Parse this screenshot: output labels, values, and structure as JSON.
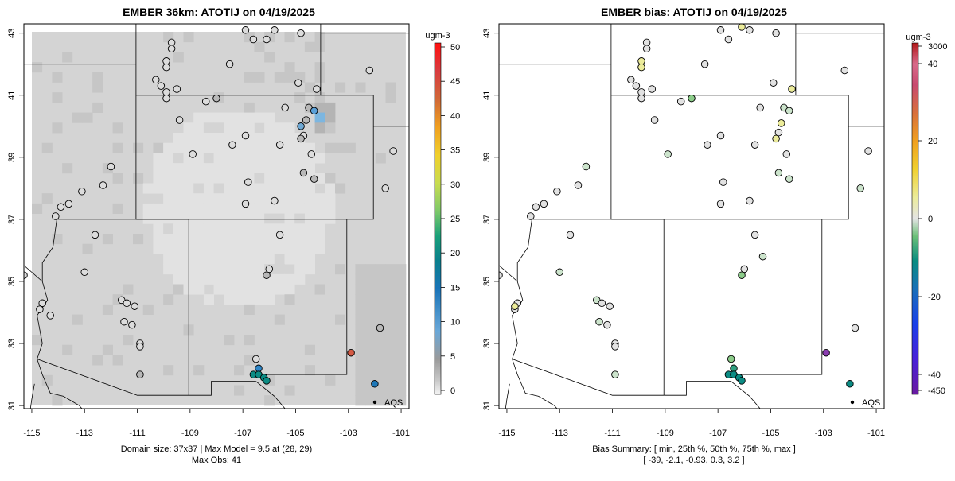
{
  "panels": [
    {
      "title": "EMBER 36km: ATOTIJ on 04/19/2025",
      "footer_lines": [
        "Domain size: 37x37 | Max Model = 9.5 at (28, 29)",
        "Max Obs: 41"
      ],
      "legend_label": "AQS"
    },
    {
      "title": "EMBER bias: ATOTIJ on 04/19/2025",
      "footer_lines": [
        "Bias Summary: [ min, 25th %, 50th %, 75th %, max ]",
        "[ -39,   -2.1,   -0.93,   0.3,   3.2 ]"
      ],
      "legend_label": "AQS"
    }
  ],
  "axes": {
    "x_ticks": [
      "-115",
      "-113",
      "-111",
      "-109",
      "-107",
      "-105",
      "-103",
      "-101"
    ],
    "y_ticks": [
      "31",
      "33",
      "35",
      "37",
      "39",
      "41",
      "43"
    ]
  },
  "colorbars": [
    {
      "unit": "ugm-3",
      "ticks": [
        "0",
        "5",
        "10",
        "15",
        "20",
        "25",
        "30",
        "35",
        "40",
        "45",
        "50"
      ]
    },
    {
      "unit": "ugm-3",
      "ticks": [
        "-450",
        "-40",
        "-20",
        "0",
        "20",
        "40",
        "3000"
      ]
    }
  ],
  "chart_data": [
    {
      "type": "heatmap",
      "title": "EMBER 36km: ATOTIJ on 04/19/2025",
      "x_range": [
        -115.3,
        -100.7
      ],
      "y_range": [
        30.9,
        43.3
      ],
      "value_range": [
        0,
        50
      ],
      "units": "ugm-3",
      "observations": [
        {
          "lon": -109.7,
          "lat": 42.7,
          "val": 1
        },
        {
          "lon": -109.7,
          "lat": 42.5,
          "val": 1
        },
        {
          "lon": -109.9,
          "lat": 42.1,
          "val": 1
        },
        {
          "lon": -109.9,
          "lat": 41.9,
          "val": 1
        },
        {
          "lon": -110.3,
          "lat": 41.5,
          "val": 1
        },
        {
          "lon": -110.1,
          "lat": 41.3,
          "val": 1
        },
        {
          "lon": -109.9,
          "lat": 41.1,
          "val": 1
        },
        {
          "lon": -109.9,
          "lat": 40.9,
          "val": 1
        },
        {
          "lon": -109.5,
          "lat": 41.2,
          "val": 1
        },
        {
          "lon": -108.4,
          "lat": 40.8,
          "val": 1
        },
        {
          "lon": -108.0,
          "lat": 40.9,
          "val": 2
        },
        {
          "lon": -107.5,
          "lat": 42.0,
          "val": 1
        },
        {
          "lon": -106.9,
          "lat": 43.1,
          "val": 1
        },
        {
          "lon": -106.6,
          "lat": 42.8,
          "val": 1
        },
        {
          "lon": -106.1,
          "lat": 42.8,
          "val": 1
        },
        {
          "lon": -105.8,
          "lat": 43.1,
          "val": 1
        },
        {
          "lon": -104.8,
          "lat": 43.0,
          "val": 1
        },
        {
          "lon": -104.9,
          "lat": 41.4,
          "val": 1
        },
        {
          "lon": -104.2,
          "lat": 41.2,
          "val": 1
        },
        {
          "lon": -102.2,
          "lat": 41.8,
          "val": 1
        },
        {
          "lon": -105.4,
          "lat": 40.6,
          "val": 1
        },
        {
          "lon": -104.5,
          "lat": 40.6,
          "val": 2
        },
        {
          "lon": -104.3,
          "lat": 40.5,
          "val": 5
        },
        {
          "lon": -104.6,
          "lat": 40.2,
          "val": 2
        },
        {
          "lon": -104.8,
          "lat": 40.0,
          "val": 4
        },
        {
          "lon": -104.7,
          "lat": 39.7,
          "val": 1
        },
        {
          "lon": -104.8,
          "lat": 39.6,
          "val": 2
        },
        {
          "lon": -104.4,
          "lat": 39.1,
          "val": 1
        },
        {
          "lon": -104.7,
          "lat": 38.5,
          "val": 2
        },
        {
          "lon": -104.3,
          "lat": 38.3,
          "val": 2
        },
        {
          "lon": -105.6,
          "lat": 39.4,
          "val": 1
        },
        {
          "lon": -106.9,
          "lat": 39.7,
          "val": 1
        },
        {
          "lon": -107.4,
          "lat": 39.4,
          "val": 1
        },
        {
          "lon": -108.9,
          "lat": 39.1,
          "val": 1
        },
        {
          "lon": -109.4,
          "lat": 40.2,
          "val": 1
        },
        {
          "lon": -106.8,
          "lat": 38.2,
          "val": 1
        },
        {
          "lon": -105.8,
          "lat": 37.6,
          "val": 1
        },
        {
          "lon": -106.9,
          "lat": 37.5,
          "val": 1
        },
        {
          "lon": -105.6,
          "lat": 36.5,
          "val": 1
        },
        {
          "lon": -106.0,
          "lat": 35.4,
          "val": 1
        },
        {
          "lon": -106.1,
          "lat": 35.2,
          "val": 2
        },
        {
          "lon": -101.3,
          "lat": 39.2,
          "val": 1
        },
        {
          "lon": -101.6,
          "lat": 38.0,
          "val": 1
        },
        {
          "lon": -112.0,
          "lat": 38.7,
          "val": 1
        },
        {
          "lon": -112.3,
          "lat": 38.1,
          "val": 1
        },
        {
          "lon": -113.1,
          "lat": 37.9,
          "val": 1
        },
        {
          "lon": -113.6,
          "lat": 37.5,
          "val": 1
        },
        {
          "lon": -113.9,
          "lat": 37.4,
          "val": 1
        },
        {
          "lon": -114.1,
          "lat": 37.1,
          "val": 1
        },
        {
          "lon": -112.6,
          "lat": 36.5,
          "val": 1
        },
        {
          "lon": -113.0,
          "lat": 35.3,
          "val": 1
        },
        {
          "lon": -111.6,
          "lat": 34.4,
          "val": 1
        },
        {
          "lon": -111.4,
          "lat": 34.3,
          "val": 1
        },
        {
          "lon": -111.1,
          "lat": 34.2,
          "val": 1
        },
        {
          "lon": -111.5,
          "lat": 33.7,
          "val": 1
        },
        {
          "lon": -111.2,
          "lat": 33.6,
          "val": 1
        },
        {
          "lon": -110.9,
          "lat": 33.0,
          "val": 1
        },
        {
          "lon": -110.9,
          "lat": 32.9,
          "val": 1
        },
        {
          "lon": -110.9,
          "lat": 32.0,
          "val": 2
        },
        {
          "lon": -114.6,
          "lat": 34.3,
          "val": 1
        },
        {
          "lon": -114.7,
          "lat": 34.1,
          "val": 1
        },
        {
          "lon": -114.3,
          "lat": 33.9,
          "val": 1
        },
        {
          "lon": -115.3,
          "lat": 35.2,
          "val": 1
        },
        {
          "lon": -106.5,
          "lat": 32.5,
          "val": 1
        },
        {
          "lon": -106.4,
          "lat": 32.2,
          "val": 10
        },
        {
          "lon": -106.6,
          "lat": 32.0,
          "val": 18
        },
        {
          "lon": -106.4,
          "lat": 32.0,
          "val": 18
        },
        {
          "lon": -106.2,
          "lat": 31.9,
          "val": 18
        },
        {
          "lon": -106.1,
          "lat": 31.8,
          "val": 18
        },
        {
          "lon": -102.9,
          "lat": 32.7,
          "val": 41
        },
        {
          "lon": -101.8,
          "lat": 33.5,
          "val": 2
        },
        {
          "lon": -102.0,
          "lat": 31.7,
          "val": 15
        }
      ]
    },
    {
      "type": "scatter",
      "title": "EMBER bias: ATOTIJ on 04/19/2025",
      "x_range": [
        -115.3,
        -100.7
      ],
      "y_range": [
        30.9,
        43.3
      ],
      "bias_summary": {
        "min": -39,
        "p25": -2.1,
        "p50": -0.93,
        "p75": 0.3,
        "max": 3.2
      },
      "units": "ugm-3",
      "observations": [
        {
          "lon": -109.7,
          "lat": 42.7,
          "val": 0
        },
        {
          "lon": -109.7,
          "lat": 42.5,
          "val": 0
        },
        {
          "lon": -109.9,
          "lat": 42.1,
          "val": 3
        },
        {
          "lon": -109.9,
          "lat": 41.9,
          "val": 3
        },
        {
          "lon": -110.3,
          "lat": 41.5,
          "val": 0
        },
        {
          "lon": -110.1,
          "lat": 41.3,
          "val": 0
        },
        {
          "lon": -109.9,
          "lat": 41.1,
          "val": 0
        },
        {
          "lon": -109.9,
          "lat": 40.9,
          "val": 0
        },
        {
          "lon": -109.5,
          "lat": 41.2,
          "val": 0
        },
        {
          "lon": -108.4,
          "lat": 40.8,
          "val": 0
        },
        {
          "lon": -108.0,
          "lat": 40.9,
          "val": -2
        },
        {
          "lon": -107.5,
          "lat": 42.0,
          "val": 0
        },
        {
          "lon": -106.9,
          "lat": 43.1,
          "val": 0
        },
        {
          "lon": -106.6,
          "lat": 42.8,
          "val": 0
        },
        {
          "lon": -106.1,
          "lat": 43.2,
          "val": 3
        },
        {
          "lon": -105.8,
          "lat": 43.1,
          "val": 0
        },
        {
          "lon": -104.8,
          "lat": 43.0,
          "val": 0
        },
        {
          "lon": -104.9,
          "lat": 41.4,
          "val": 0
        },
        {
          "lon": -104.2,
          "lat": 41.2,
          "val": 3
        },
        {
          "lon": -102.2,
          "lat": 41.8,
          "val": 0
        },
        {
          "lon": -105.4,
          "lat": 40.6,
          "val": 0
        },
        {
          "lon": -104.5,
          "lat": 40.6,
          "val": -1
        },
        {
          "lon": -104.3,
          "lat": 40.5,
          "val": -1
        },
        {
          "lon": -104.6,
          "lat": 40.1,
          "val": 3
        },
        {
          "lon": -104.8,
          "lat": 39.6,
          "val": 3
        },
        {
          "lon": -104.7,
          "lat": 39.8,
          "val": 0
        },
        {
          "lon": -104.4,
          "lat": 39.1,
          "val": 0
        },
        {
          "lon": -104.7,
          "lat": 38.5,
          "val": -1
        },
        {
          "lon": -104.3,
          "lat": 38.3,
          "val": -1
        },
        {
          "lon": -105.6,
          "lat": 39.4,
          "val": 0
        },
        {
          "lon": -106.9,
          "lat": 39.7,
          "val": 0
        },
        {
          "lon": -107.4,
          "lat": 39.4,
          "val": 0
        },
        {
          "lon": -108.9,
          "lat": 39.1,
          "val": -1
        },
        {
          "lon": -109.4,
          "lat": 40.2,
          "val": 0
        },
        {
          "lon": -106.8,
          "lat": 38.2,
          "val": 0
        },
        {
          "lon": -105.8,
          "lat": 37.6,
          "val": 0
        },
        {
          "lon": -106.9,
          "lat": 37.5,
          "val": 0
        },
        {
          "lon": -105.6,
          "lat": 36.5,
          "val": 0
        },
        {
          "lon": -106.0,
          "lat": 35.4,
          "val": 0
        },
        {
          "lon": -106.1,
          "lat": 35.2,
          "val": -3
        },
        {
          "lon": -105.3,
          "lat": 35.8,
          "val": -1
        },
        {
          "lon": -101.3,
          "lat": 39.2,
          "val": 0
        },
        {
          "lon": -101.6,
          "lat": 38.0,
          "val": -1
        },
        {
          "lon": -112.0,
          "lat": 38.7,
          "val": -1
        },
        {
          "lon": -112.3,
          "lat": 38.1,
          "val": 0
        },
        {
          "lon": -113.1,
          "lat": 37.9,
          "val": 0
        },
        {
          "lon": -113.6,
          "lat": 37.5,
          "val": 0
        },
        {
          "lon": -113.9,
          "lat": 37.4,
          "val": 0
        },
        {
          "lon": -114.1,
          "lat": 37.1,
          "val": 0
        },
        {
          "lon": -112.6,
          "lat": 36.5,
          "val": 0
        },
        {
          "lon": -113.0,
          "lat": 35.3,
          "val": -1
        },
        {
          "lon": -111.6,
          "lat": 34.4,
          "val": -1
        },
        {
          "lon": -111.4,
          "lat": 34.3,
          "val": 0
        },
        {
          "lon": -111.1,
          "lat": 34.2,
          "val": 0
        },
        {
          "lon": -111.5,
          "lat": 33.7,
          "val": -1
        },
        {
          "lon": -111.2,
          "lat": 33.6,
          "val": 0
        },
        {
          "lon": -110.9,
          "lat": 33.0,
          "val": 0
        },
        {
          "lon": -110.9,
          "lat": 32.9,
          "val": 0
        },
        {
          "lon": -110.9,
          "lat": 32.0,
          "val": -1
        },
        {
          "lon": -114.6,
          "lat": 34.3,
          "val": 0
        },
        {
          "lon": -114.7,
          "lat": 34.1,
          "val": 0
        },
        {
          "lon": -114.7,
          "lat": 34.2,
          "val": 3
        },
        {
          "lon": -115.3,
          "lat": 35.2,
          "val": 0
        },
        {
          "lon": -106.5,
          "lat": 32.5,
          "val": -2
        },
        {
          "lon": -106.4,
          "lat": 32.2,
          "val": -6
        },
        {
          "lon": -106.6,
          "lat": 32.0,
          "val": -15
        },
        {
          "lon": -106.4,
          "lat": 32.0,
          "val": -15
        },
        {
          "lon": -106.2,
          "lat": 31.9,
          "val": -15
        },
        {
          "lon": -106.1,
          "lat": 31.8,
          "val": -15
        },
        {
          "lon": -102.9,
          "lat": 32.7,
          "val": -39
        },
        {
          "lon": -101.8,
          "lat": 33.5,
          "val": 0
        },
        {
          "lon": -102.0,
          "lat": 31.7,
          "val": -14
        }
      ]
    }
  ]
}
